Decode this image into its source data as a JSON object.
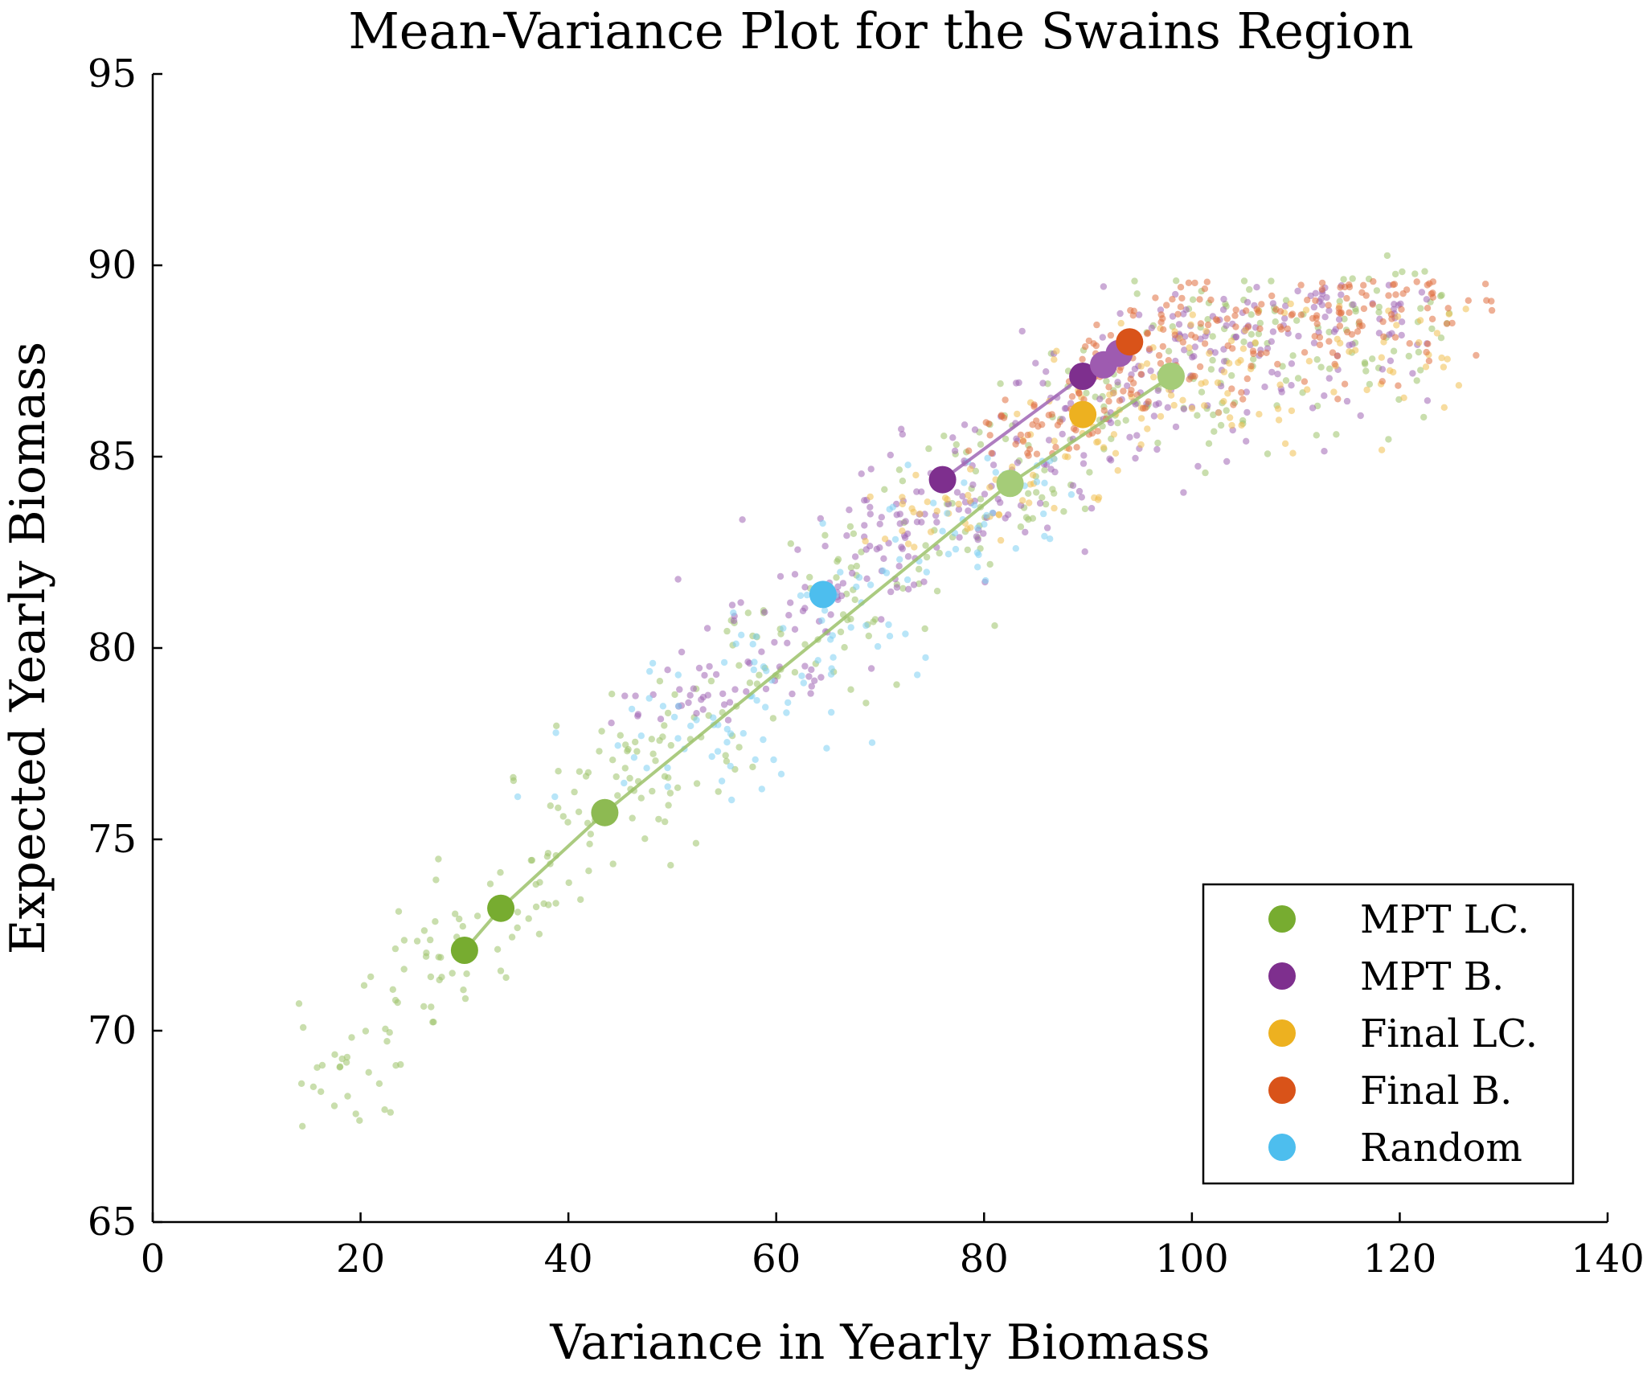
{
  "chart_data": {
    "type": "scatter",
    "title": "Mean-Variance Plot for the Swains Region",
    "xlabel": "Variance in Yearly Biomass",
    "ylabel": "Expected Yearly Biomass",
    "xlim": [
      0,
      140
    ],
    "ylim": [
      65,
      95
    ],
    "xticks": [
      0,
      20,
      40,
      60,
      80,
      100,
      120,
      140
    ],
    "yticks": [
      65,
      70,
      75,
      80,
      85,
      90,
      95
    ],
    "grid": false,
    "legend_position": "bottom-right",
    "series": [
      {
        "name": "MPT LC.",
        "color": "#77AC30",
        "cloud_color": "#9CC26A",
        "frontier_line": true,
        "highlight_points": [
          {
            "x": 30.0,
            "y": 72.1
          },
          {
            "x": 33.5,
            "y": 73.2
          },
          {
            "x": 43.5,
            "y": 75.7
          },
          {
            "x": 82.5,
            "y": 84.3
          },
          {
            "x": 98.0,
            "y": 87.1
          }
        ],
        "cloud": {
          "x_range": [
            14,
            125
          ],
          "y_range": [
            67.5,
            90.5
          ],
          "count": 430
        }
      },
      {
        "name": "MPT B.",
        "color": "#7E2F8E",
        "cloud_color": "#A066B5",
        "frontier_line": true,
        "highlight_points": [
          {
            "x": 76.0,
            "y": 84.4
          },
          {
            "x": 89.5,
            "y": 87.1
          },
          {
            "x": 91.5,
            "y": 87.4
          },
          {
            "x": 93.0,
            "y": 87.7
          }
        ],
        "cloud": {
          "x_range": [
            42,
            123
          ],
          "y_range": [
            78,
            89.5
          ],
          "count": 380
        }
      },
      {
        "name": "Final LC.",
        "color": "#EDB120",
        "cloud_color": "#F0C050",
        "frontier_line": false,
        "highlight_points": [
          {
            "x": 89.5,
            "y": 86.1
          }
        ],
        "cloud": {
          "x_range": [
            62,
            127
          ],
          "y_range": [
            82.5,
            89.0
          ],
          "count": 160
        }
      },
      {
        "name": "Final B.",
        "color": "#D95319",
        "cloud_color": "#E07040",
        "frontier_line": false,
        "highlight_points": [
          {
            "x": 94.0,
            "y": 88.0
          }
        ],
        "cloud": {
          "x_range": [
            78,
            130
          ],
          "y_range": [
            85.0,
            89.6
          ],
          "count": 230
        }
      },
      {
        "name": "Random",
        "color": "#4DBEEE",
        "cloud_color": "#7DCFF3",
        "frontier_line": false,
        "highlight_points": [
          {
            "x": 64.5,
            "y": 81.4
          }
        ],
        "cloud": {
          "x_range": [
            34,
            89
          ],
          "y_range": [
            76.0,
            85.0
          ],
          "count": 130
        }
      }
    ]
  }
}
